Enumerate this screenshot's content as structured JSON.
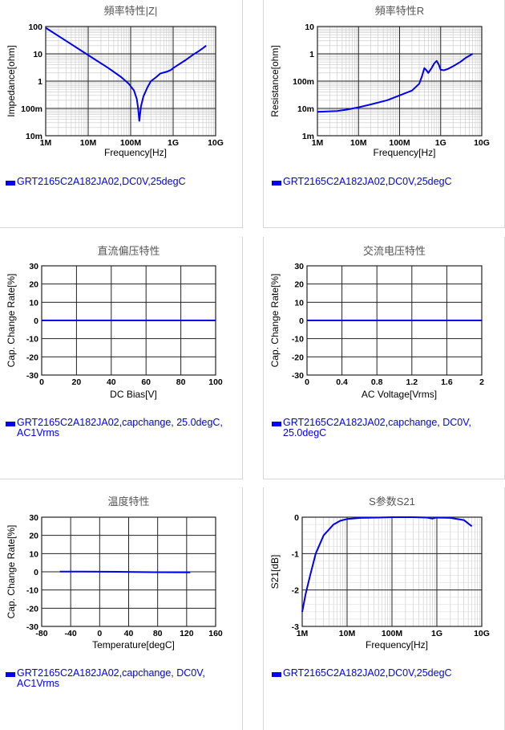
{
  "charts": [
    {
      "type": "line",
      "title": "頻率特性|Z|",
      "xlabel": "Frequency[Hz]",
      "ylabel": "Impedance[ohm]",
      "xscale": "log",
      "yscale": "log",
      "xlim": [
        1000000,
        10000000000
      ],
      "ylim": [
        0.01,
        100
      ],
      "xticks": [
        {
          "v": 1000000,
          "label": "1M"
        },
        {
          "v": 10000000,
          "label": "10M"
        },
        {
          "v": 100000000,
          "label": "100M"
        },
        {
          "v": 1000000000,
          "label": "1G"
        },
        {
          "v": 10000000000,
          "label": "10G"
        }
      ],
      "yticks": [
        {
          "v": 0.01,
          "label": "10m"
        },
        {
          "v": 0.1,
          "label": "100m"
        },
        {
          "v": 1,
          "label": "1"
        },
        {
          "v": 10,
          "label": "10"
        },
        {
          "v": 100,
          "label": "100"
        }
      ],
      "grid": true,
      "series_color": "#0000ee",
      "series": [
        {
          "name": "GRT2165C2A182JA02,DC0V,25degC",
          "x": [
            1000000,
            3000000,
            10000000,
            30000000,
            60000000,
            90000000,
            120000000,
            140000000,
            150000000,
            160000000,
            175000000,
            200000000,
            250000000,
            300000000,
            400000000,
            500000000,
            700000000,
            900000000,
            1000000000,
            2000000000,
            3000000000,
            4000000000,
            5000000000,
            6000000000
          ],
          "y": [
            90,
            30,
            9,
            3,
            1.4,
            0.8,
            0.45,
            0.22,
            0.1,
            0.035,
            0.12,
            0.28,
            0.6,
            1.0,
            1.4,
            1.9,
            2.2,
            2.6,
            3.0,
            6.0,
            9.5,
            12.5,
            16,
            20
          ]
        }
      ],
      "legend": "GRT2165C2A182JA02,DC0V,25degC"
    },
    {
      "type": "line",
      "title": "頻率特性R",
      "xlabel": "Frequency[Hz]",
      "ylabel": "Resistance[ohm]",
      "xscale": "log",
      "yscale": "log",
      "xlim": [
        1000000,
        10000000000
      ],
      "ylim": [
        0.001,
        10
      ],
      "xticks": [
        {
          "v": 1000000,
          "label": "1M"
        },
        {
          "v": 10000000,
          "label": "10M"
        },
        {
          "v": 100000000,
          "label": "100M"
        },
        {
          "v": 1000000000,
          "label": "1G"
        },
        {
          "v": 10000000000,
          "label": "10G"
        }
      ],
      "yticks": [
        {
          "v": 0.001,
          "label": "1m"
        },
        {
          "v": 0.01,
          "label": "10m"
        },
        {
          "v": 0.1,
          "label": "100m"
        },
        {
          "v": 1,
          "label": "1"
        },
        {
          "v": 10,
          "label": "10"
        }
      ],
      "grid": true,
      "series_color": "#0000ee",
      "series": [
        {
          "name": "GRT2165C2A182JA02,DC0V,25degC",
          "x": [
            1000000,
            3000000,
            5000000,
            10000000,
            20000000,
            50000000,
            100000000,
            200000000,
            300000000,
            350000000,
            400000000,
            450000000,
            500000000,
            600000000,
            700000000,
            800000000,
            900000000,
            1000000000,
            1200000000,
            1500000000,
            2000000000,
            3000000000,
            4000000000,
            5000000000,
            6000000000
          ],
          "y": [
            0.0075,
            0.008,
            0.009,
            0.011,
            0.014,
            0.02,
            0.03,
            0.045,
            0.08,
            0.15,
            0.3,
            0.25,
            0.2,
            0.3,
            0.45,
            0.55,
            0.4,
            0.26,
            0.25,
            0.28,
            0.35,
            0.5,
            0.7,
            0.85,
            1.0
          ]
        }
      ],
      "legend": "GRT2165C2A182JA02,DC0V,25degC"
    },
    {
      "type": "line",
      "title": "直流偏压特性",
      "xlabel": "DC Bias[V]",
      "ylabel": "Cap. Change Rate[%]",
      "xscale": "linear",
      "yscale": "linear",
      "xlim": [
        0,
        100
      ],
      "ylim": [
        -30,
        30
      ],
      "xticks": [
        {
          "v": 0,
          "label": "0"
        },
        {
          "v": 20,
          "label": "20"
        },
        {
          "v": 40,
          "label": "40"
        },
        {
          "v": 60,
          "label": "60"
        },
        {
          "v": 80,
          "label": "80"
        },
        {
          "v": 100,
          "label": "100"
        }
      ],
      "yticks": [
        {
          "v": -30,
          "label": "-30"
        },
        {
          "v": -20,
          "label": "-20"
        },
        {
          "v": -10,
          "label": "-10"
        },
        {
          "v": 0,
          "label": "0"
        },
        {
          "v": 10,
          "label": "10"
        },
        {
          "v": 20,
          "label": "20"
        },
        {
          "v": 30,
          "label": "30"
        }
      ],
      "grid": true,
      "series_color": "#0000ee",
      "series": [
        {
          "name": "GRT2165C2A182JA02,capchange, 25.0degC, AC1Vrms",
          "x": [
            0,
            100
          ],
          "y": [
            0,
            0
          ]
        }
      ],
      "legend": "GRT2165C2A182JA02,capchange, 25.0degC, AC1Vrms"
    },
    {
      "type": "line",
      "title": "交流电压特性",
      "xlabel": "AC Voltage[Vrms]",
      "ylabel": "Cap. Change Rate[%]",
      "xscale": "linear",
      "yscale": "linear",
      "xlim": [
        0,
        2
      ],
      "ylim": [
        -30,
        30
      ],
      "xticks": [
        {
          "v": 0,
          "label": "0"
        },
        {
          "v": 0.4,
          "label": "0.4"
        },
        {
          "v": 0.8,
          "label": "0.8"
        },
        {
          "v": 1.2,
          "label": "1.2"
        },
        {
          "v": 1.6,
          "label": "1.6"
        },
        {
          "v": 2,
          "label": "2"
        }
      ],
      "yticks": [
        {
          "v": -30,
          "label": "-30"
        },
        {
          "v": -20,
          "label": "-20"
        },
        {
          "v": -10,
          "label": "-10"
        },
        {
          "v": 0,
          "label": "0"
        },
        {
          "v": 10,
          "label": "10"
        },
        {
          "v": 20,
          "label": "20"
        },
        {
          "v": 30,
          "label": "30"
        }
      ],
      "grid": true,
      "series_color": "#0000ee",
      "series": [
        {
          "name": "GRT2165C2A182JA02,capchange, DC0V, 25.0degC",
          "x": [
            0,
            2
          ],
          "y": [
            0,
            0
          ]
        }
      ],
      "legend": "GRT2165C2A182JA02,capchange, DC0V, 25.0degC"
    },
    {
      "type": "line",
      "title": "温度特性",
      "xlabel": "Temperature[degC]",
      "ylabel": "Cap. Change Rate[%]",
      "xscale": "linear",
      "yscale": "linear",
      "xlim": [
        -80,
        160
      ],
      "ylim": [
        -30,
        30
      ],
      "xticks": [
        {
          "v": -80,
          "label": "-80"
        },
        {
          "v": -40,
          "label": "-40"
        },
        {
          "v": 0,
          "label": "0"
        },
        {
          "v": 40,
          "label": "40"
        },
        {
          "v": 80,
          "label": "80"
        },
        {
          "v": 120,
          "label": "120"
        },
        {
          "v": 160,
          "label": "160"
        }
      ],
      "yticks": [
        {
          "v": -30,
          "label": "-30"
        },
        {
          "v": -20,
          "label": "-20"
        },
        {
          "v": -10,
          "label": "-10"
        },
        {
          "v": 0,
          "label": "0"
        },
        {
          "v": 10,
          "label": "10"
        },
        {
          "v": 20,
          "label": "20"
        },
        {
          "v": 30,
          "label": "30"
        }
      ],
      "grid": true,
      "series_color": "#0000ee",
      "series": [
        {
          "name": "GRT2165C2A182JA02,capchange, DC0V, AC1Vrms",
          "x": [
            -55,
            -25,
            0,
            25,
            50,
            75,
            100,
            125
          ],
          "y": [
            0.15,
            0.1,
            0.05,
            0,
            -0.1,
            -0.2,
            -0.25,
            -0.35
          ]
        }
      ],
      "legend": "GRT2165C2A182JA02,capchange, DC0V, AC1Vrms"
    },
    {
      "type": "line",
      "title": "S参数S21",
      "xlabel": "Frequency[Hz]",
      "ylabel": "S21[dB]",
      "xscale": "log",
      "yscale": "linear",
      "xlim": [
        1000000,
        10000000000
      ],
      "ylim": [
        -3,
        0
      ],
      "xticks": [
        {
          "v": 1000000,
          "label": "1M"
        },
        {
          "v": 10000000,
          "label": "10M"
        },
        {
          "v": 100000000,
          "label": "100M"
        },
        {
          "v": 1000000000,
          "label": "1G"
        },
        {
          "v": 10000000000,
          "label": "10G"
        }
      ],
      "yticks": [
        {
          "v": -3,
          "label": "-3"
        },
        {
          "v": -2,
          "label": "-2"
        },
        {
          "v": -1,
          "label": "-1"
        },
        {
          "v": 0,
          "label": "0"
        }
      ],
      "grid": true,
      "series_color": "#0000ee",
      "series": [
        {
          "name": "GRT2165C2A182JA02,DC0V,25degC",
          "x": [
            1000000,
            1200000,
            1500000,
            2000000,
            3000000,
            5000000,
            7000000,
            10000000,
            20000000,
            50000000,
            100000000,
            300000000,
            600000000,
            800000000,
            900000000,
            1000000000,
            2000000000,
            4000000000,
            6000000000
          ],
          "y": [
            -2.6,
            -2.1,
            -1.6,
            -1.0,
            -0.5,
            -0.2,
            -0.1,
            -0.05,
            -0.02,
            -0.01,
            0,
            0,
            -0.01,
            -0.04,
            -0.02,
            -0.01,
            -0.02,
            -0.08,
            -0.25
          ]
        }
      ],
      "legend": "GRT2165C2A182JA02,DC0V,25degC"
    }
  ]
}
